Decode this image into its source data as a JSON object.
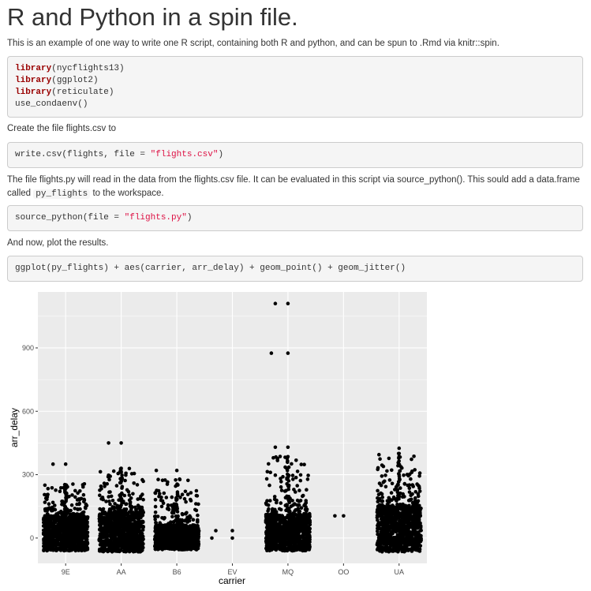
{
  "title": "R and Python in a spin file.",
  "intro": "This is an example of one way to write one R script, containing both R and python, and can be spun to .Rmd via knitr::spin.",
  "code1": [
    {
      "kw": "library",
      "rest": "(nycflights13)"
    },
    {
      "kw": "library",
      "rest": "(ggplot2)"
    },
    {
      "kw": "library",
      "rest": "(reticulate)"
    },
    {
      "kw": "",
      "rest": "use_condaenv()"
    }
  ],
  "para2": "Create the file flights.csv to",
  "code2": {
    "pre": "write.csv(flights, file = ",
    "str": "\"flights.csv\"",
    "post": ")"
  },
  "para3": {
    "text": "The file flights.py will read in the data from the flights.csv file. It can be evaluated in this script via source_python(). This sould add a data.frame called",
    "code": "py_flights",
    "after": " to the workspace."
  },
  "code3": {
    "pre": "source_python(file = ",
    "str": "\"flights.py\"",
    "post": ")"
  },
  "para4": "And now, plot the results.",
  "code4": "ggplot(py_flights) + aes(carrier, arr_delay) + geom_point() + geom_jitter()",
  "chart_data": {
    "type": "scatter",
    "title": "",
    "xlabel": "carrier",
    "ylabel": "arr_delay",
    "categories": [
      "9E",
      "AA",
      "B6",
      "EV",
      "MQ",
      "OO",
      "UA"
    ],
    "yticks": [
      "0",
      "300",
      "600",
      "900"
    ],
    "ytick_values": [
      0,
      300,
      600,
      900
    ],
    "ylim": [
      -120,
      1165
    ],
    "grid": true,
    "jittered": true,
    "point_color": "#000000",
    "panel_color": "#ebebeb",
    "dense_bulk": {
      "9E": {
        "range": [
          -60,
          100
        ],
        "sparse_max": 260
      },
      "AA": {
        "range": [
          -65,
          120
        ],
        "sparse_max": 330
      },
      "B6": {
        "range": [
          -55,
          60
        ],
        "sparse_max": 280
      },
      "EV": {
        "range": null,
        "sparse_max": null
      },
      "MQ": {
        "range": [
          -60,
          110
        ],
        "sparse_max": 390
      },
      "OO": {
        "range": null,
        "sparse_max": null
      },
      "UA": {
        "range": [
          -65,
          150
        ],
        "sparse_max": 400
      }
    },
    "notable_points": [
      {
        "x": "9E",
        "y": 350
      },
      {
        "x": "9E",
        "y": 350
      },
      {
        "x": "AA",
        "y": 450
      },
      {
        "x": "AA",
        "y": 450
      },
      {
        "x": "AA",
        "y": 330
      },
      {
        "x": "B6",
        "y": 320
      },
      {
        "x": "B6",
        "y": 320
      },
      {
        "x": "EV",
        "y": 35
      },
      {
        "x": "EV",
        "y": 35
      },
      {
        "x": "EV",
        "y": 0
      },
      {
        "x": "EV",
        "y": 0
      },
      {
        "x": "MQ",
        "y": 1110
      },
      {
        "x": "MQ",
        "y": 1110
      },
      {
        "x": "MQ",
        "y": 875
      },
      {
        "x": "MQ",
        "y": 875
      },
      {
        "x": "MQ",
        "y": 430
      },
      {
        "x": "MQ",
        "y": 430
      },
      {
        "x": "MQ",
        "y": 385
      },
      {
        "x": "OO",
        "y": 105
      },
      {
        "x": "OO",
        "y": 105
      },
      {
        "x": "UA",
        "y": 425
      },
      {
        "x": "UA",
        "y": 400
      }
    ]
  }
}
